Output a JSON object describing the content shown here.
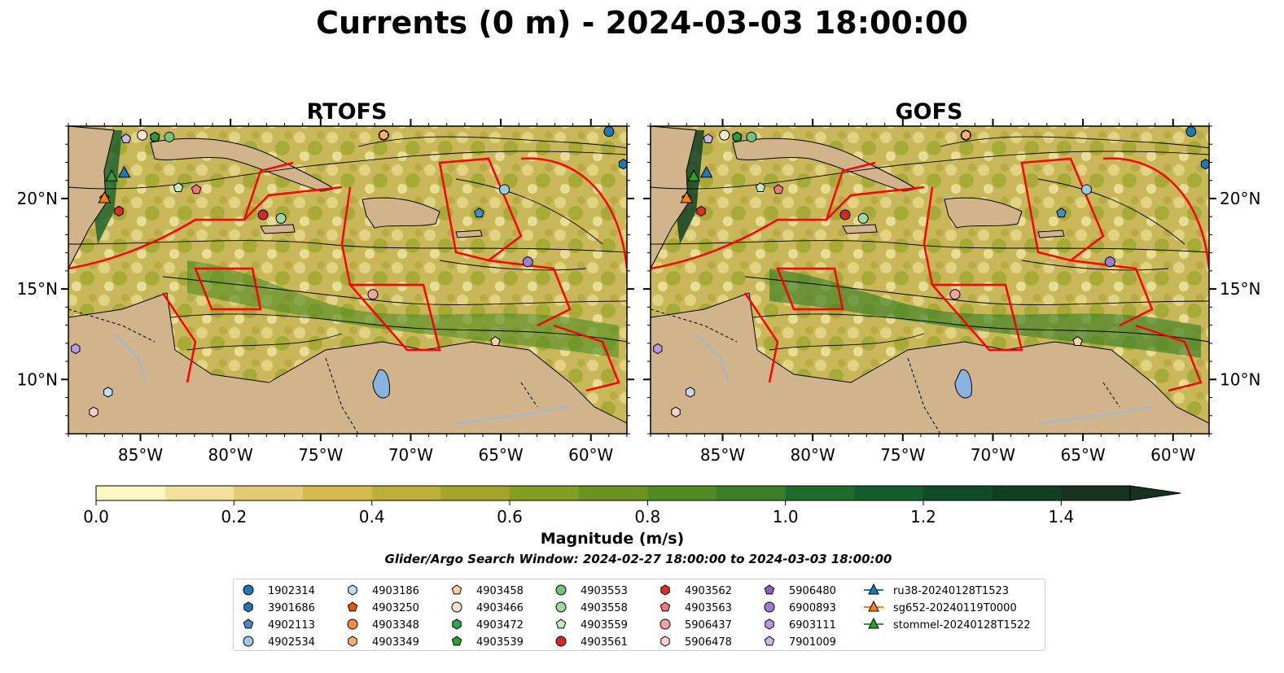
{
  "title": "Currents (0 m) - 2024-03-03 18:00:00",
  "panels": [
    {
      "title": "RTOFS",
      "side": "left"
    },
    {
      "title": "GOFS",
      "side": "right"
    }
  ],
  "map": {
    "lon_range": [
      -89,
      -58
    ],
    "lat_range": [
      7,
      24
    ],
    "lon_ticks": [
      "85°W",
      "80°W",
      "75°W",
      "70°W",
      "65°W",
      "60°W"
    ],
    "lon_tick_values": [
      -85,
      -80,
      -75,
      -70,
      -65,
      -60
    ],
    "lat_ticks": [
      "10°N",
      "15°N",
      "20°N"
    ],
    "lat_tick_values": [
      10,
      15,
      20
    ],
    "land_color": "#d2b48c",
    "boundary_color": "#ff0000",
    "streamline_color": "#000000"
  },
  "colorbar": {
    "label": "Magnitude (m/s)",
    "ticks": [
      "0.0",
      "0.2",
      "0.4",
      "0.6",
      "0.8",
      "1.0",
      "1.2",
      "1.4"
    ],
    "range": [
      0,
      1.5
    ],
    "extend": "max",
    "colors": [
      "#fdf7c2",
      "#f0e19b",
      "#e2cb74",
      "#d4bb4c",
      "#bdb03a",
      "#a3a52a",
      "#849e1f",
      "#6a931f",
      "#4f8a23",
      "#3a7f27",
      "#1e6b2b",
      "#145c2b",
      "#104b26",
      "#123e22",
      "#17331f"
    ]
  },
  "search_window": "Glider/Argo Search Window: 2024-02-27 18:00:00 to 2024-03-03 18:00:00",
  "legend": {
    "columns": [
      [
        {
          "label": "1902314",
          "marker": "circle",
          "color": "#1f77b4"
        },
        {
          "label": "3901686",
          "marker": "hexagon",
          "color": "#1f77b4"
        },
        {
          "label": "4902113",
          "marker": "pentagon",
          "color": "#4a8ac4"
        },
        {
          "label": "4902534",
          "marker": "circle",
          "color": "#9ecae1"
        }
      ],
      [
        {
          "label": "4903186",
          "marker": "hexagon",
          "color": "#c6dbef"
        },
        {
          "label": "4903250",
          "marker": "pentagon",
          "color": "#e6550d"
        },
        {
          "label": "4903348",
          "marker": "circle",
          "color": "#fd8d3c"
        },
        {
          "label": "4903349",
          "marker": "hexagon",
          "color": "#fdae6b"
        }
      ],
      [
        {
          "label": "4903458",
          "marker": "pentagon",
          "color": "#fdd0a2"
        },
        {
          "label": "4903466",
          "marker": "circle",
          "color": "#fee6ce"
        },
        {
          "label": "4903472",
          "marker": "hexagon",
          "color": "#31a354"
        },
        {
          "label": "4903539",
          "marker": "pentagon",
          "color": "#2ca02c"
        }
      ],
      [
        {
          "label": "4903553",
          "marker": "circle",
          "color": "#74c476"
        },
        {
          "label": "4903558",
          "marker": "circle",
          "color": "#a1d99b"
        },
        {
          "label": "4903559",
          "marker": "pentagon",
          "color": "#c7e9c0"
        },
        {
          "label": "4903561",
          "marker": "circle",
          "color": "#d62728"
        }
      ],
      [
        {
          "label": "4903562",
          "marker": "hexagon",
          "color": "#de2d26"
        },
        {
          "label": "4903563",
          "marker": "pentagon",
          "color": "#f0787b"
        },
        {
          "label": "5906437",
          "marker": "circle",
          "color": "#f4a3a3"
        },
        {
          "label": "5906478",
          "marker": "hexagon",
          "color": "#fcd0cf"
        }
      ],
      [
        {
          "label": "5906480",
          "marker": "pentagon",
          "color": "#8c5fb8"
        },
        {
          "label": "6900893",
          "marker": "circle",
          "color": "#9e7fcf"
        },
        {
          "label": "6903111",
          "marker": "hexagon",
          "color": "#b49be0"
        },
        {
          "label": "7901009",
          "marker": "pentagon",
          "color": "#cbb8ef"
        }
      ],
      [
        {
          "label": "ru38-20240128T1523",
          "marker": "triangle-line",
          "color": "#1f77b4"
        },
        {
          "label": "sg652-20240119T0000",
          "marker": "triangle-line",
          "color": "#ff7f0e"
        },
        {
          "label": "stommel-20240128T1522",
          "marker": "triangle-line",
          "color": "#2ca02c"
        }
      ]
    ]
  },
  "gliders": [
    {
      "name": "ru38-20240128T1523",
      "lon": -85.9,
      "lat": 21.4,
      "color": "#1f77b4"
    },
    {
      "name": "sg652-20240119T0000",
      "lon": -87.0,
      "lat": 20.0,
      "color": "#ff7f0e"
    },
    {
      "name": "stommel-20240128T1522",
      "lon": -86.6,
      "lat": 21.2,
      "color": "#2ca02c"
    }
  ],
  "floats": [
    {
      "id": "1902314",
      "lon": -59.0,
      "lat": 23.7
    },
    {
      "id": "3901686",
      "lon": -58.2,
      "lat": 21.9
    },
    {
      "id": "4902113",
      "lon": -66.2,
      "lat": 19.2
    },
    {
      "id": "4902534",
      "lon": -64.8,
      "lat": 20.5
    },
    {
      "id": "4903186",
      "lon": -86.8,
      "lat": 9.3
    },
    {
      "id": "4903250",
      "lon": -87.0,
      "lat": 20.0
    },
    {
      "id": "4903348",
      "lon": -71.5,
      "lat": 23.5
    },
    {
      "id": "4903349",
      "lon": -71.5,
      "lat": 23.5
    },
    {
      "id": "4903458",
      "lon": -65.3,
      "lat": 12.1
    },
    {
      "id": "4903466",
      "lon": -84.9,
      "lat": 23.5
    },
    {
      "id": "4903472",
      "lon": -84.2,
      "lat": 23.4
    },
    {
      "id": "4903539",
      "lon": -84.2,
      "lat": 23.4
    },
    {
      "id": "4903553",
      "lon": -83.4,
      "lat": 23.4
    },
    {
      "id": "4903558",
      "lon": -77.2,
      "lat": 18.9
    },
    {
      "id": "4903559",
      "lon": -82.9,
      "lat": 20.6
    },
    {
      "id": "4903561",
      "lon": -78.2,
      "lat": 19.1
    },
    {
      "id": "4903562",
      "lon": -86.2,
      "lat": 19.3
    },
    {
      "id": "4903563",
      "lon": -81.9,
      "lat": 20.5
    },
    {
      "id": "5906437",
      "lon": -72.1,
      "lat": 14.7
    },
    {
      "id": "5906478",
      "lon": -87.6,
      "lat": 8.2
    },
    {
      "id": "5906480",
      "lon": -63.5,
      "lat": 16.5
    },
    {
      "id": "6900893",
      "lon": -63.5,
      "lat": 16.5
    },
    {
      "id": "6903111",
      "lon": -88.6,
      "lat": 11.7
    },
    {
      "id": "7901009",
      "lon": -85.8,
      "lat": 23.3
    }
  ]
}
